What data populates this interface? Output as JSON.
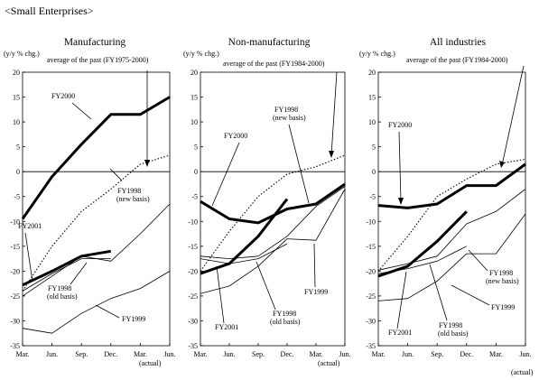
{
  "header": "<Small Enterprises>",
  "chart_data": [
    {
      "type": "line",
      "title": "Manufacturing",
      "ylabel": "(y/y % chg.)",
      "subtitle": "average of the past (FY1975-2000)",
      "x_unit_note": "(actual)",
      "categories": [
        "Mar.",
        "Jun.",
        "Sep.",
        "Dec.",
        "Mar.",
        "Jun."
      ],
      "ylim": [
        -35,
        20
      ],
      "yticks": [
        20,
        15,
        10,
        5,
        0,
        -5,
        -10,
        -15,
        -20,
        -25,
        -30,
        -35
      ],
      "series": [
        {
          "name": "FY2000",
          "style": "bold",
          "values": [
            -9.5,
            -1.0,
            5.5,
            11.5,
            11.5,
            15.0
          ]
        },
        {
          "name": "FY2001",
          "style": "bold",
          "values": [
            -22.8,
            -20.0,
            -17.0,
            -16.0,
            null,
            null
          ]
        },
        {
          "name": "FY1998 (new basis)",
          "style": "thin",
          "values": [
            -25.0,
            -21.0,
            -17.0,
            -18.0,
            -12.5,
            -6.5
          ]
        },
        {
          "name": "FY1998 (old basis)",
          "style": "thin",
          "values": [
            -24.0,
            -20.5,
            -17.5,
            -17.5,
            null,
            null
          ]
        },
        {
          "name": "FY1999",
          "style": "thin",
          "values": [
            -31.5,
            -32.5,
            -28.5,
            -25.5,
            -23.5,
            -20.0
          ]
        },
        {
          "name": "average of the past (FY1975-2000)",
          "style": "dotted",
          "values": [
            -24.0,
            -15.0,
            -8.0,
            -3.5,
            1.5,
            3.3
          ]
        }
      ],
      "annotations": [
        "FY2000",
        "FY2001",
        "FY1998",
        "(new basis)",
        "FY1998",
        "(old basis)",
        "FY1999"
      ]
    },
    {
      "type": "line",
      "title": "Non-manufacturing",
      "ylabel": "(y/y % chg.)",
      "subtitle": "average of the past (FY1984-2000)",
      "x_unit_note": "(actual)",
      "categories": [
        "Mar.",
        "Jun.",
        "Sep.",
        "Dec.",
        "Mar.",
        "Jun."
      ],
      "ylim": [
        -35,
        20
      ],
      "yticks": [
        20,
        15,
        10,
        5,
        0,
        -5,
        -10,
        -15,
        -20,
        -25,
        -30,
        -35
      ],
      "series": [
        {
          "name": "FY2000",
          "style": "bold",
          "values": [
            -6.0,
            -9.5,
            -10.3,
            -7.5,
            -6.5,
            -2.5
          ]
        },
        {
          "name": "FY2001",
          "style": "bold",
          "values": [
            -20.5,
            -18.5,
            -13.0,
            -5.5,
            null,
            null
          ]
        },
        {
          "name": "FY1998 (new basis)",
          "style": "thin",
          "values": [
            -17.0,
            -17.5,
            -17.0,
            -13.0,
            -7.0,
            -3.0
          ]
        },
        {
          "name": "FY1998 (old basis)",
          "style": "thin",
          "values": [
            -17.5,
            -18.5,
            -17.5,
            -14.5,
            null,
            null
          ]
        },
        {
          "name": "FY1999",
          "style": "thin",
          "values": [
            -24.5,
            -23.0,
            -19.0,
            -13.5,
            -13.8,
            -3.5
          ]
        },
        {
          "name": "average of the past (FY1984-2000)",
          "style": "dotted",
          "values": [
            -20.0,
            -12.0,
            -5.0,
            -0.5,
            1.0,
            3.3
          ]
        }
      ],
      "annotations": [
        "FY2000",
        "FY2001",
        "FY1998",
        "(new basis)",
        "FY1998",
        "(old basis)",
        "FY1999"
      ]
    },
    {
      "type": "line",
      "title": "All industries",
      "ylabel": "(y/y % chg.)",
      "subtitle": "average of the past (FY1984-2000)",
      "x_unit_note": "(actual)",
      "categories": [
        "Mar.",
        "Jun.",
        "Sep.",
        "Dec.",
        "Mar.",
        "Jun."
      ],
      "ylim": [
        -35,
        20
      ],
      "yticks": [
        20,
        15,
        10,
        5,
        0,
        -5,
        -10,
        -15,
        -20,
        -25,
        -30,
        -35
      ],
      "series": [
        {
          "name": "FY2000",
          "style": "bold",
          "values": [
            -6.8,
            -7.3,
            -6.5,
            -2.8,
            -2.8,
            1.5
          ]
        },
        {
          "name": "FY2001",
          "style": "bold",
          "values": [
            -21.0,
            -19.0,
            -14.0,
            -8.0,
            null,
            null
          ]
        },
        {
          "name": "FY1998 (new basis)",
          "style": "thin",
          "values": [
            -19.8,
            -18.5,
            -17.0,
            -10.5,
            -8.0,
            -3.5
          ]
        },
        {
          "name": "FY1998 (old basis)",
          "style": "thin",
          "values": [
            -20.5,
            -19.5,
            -18.0,
            -15.0,
            null,
            null
          ]
        },
        {
          "name": "FY1999",
          "style": "thin",
          "values": [
            -26.0,
            -25.5,
            -22.0,
            -16.5,
            -16.5,
            -8.5
          ]
        },
        {
          "name": "average of the past (FY1984-2000)",
          "style": "dotted",
          "values": [
            -20.0,
            -13.0,
            -5.0,
            -1.5,
            1.5,
            2.5
          ]
        }
      ],
      "annotations": [
        "FY2000",
        "FY2001",
        "FY1998",
        "(new basis)",
        "FY1998",
        "(old basis)",
        "FY1999"
      ]
    }
  ]
}
